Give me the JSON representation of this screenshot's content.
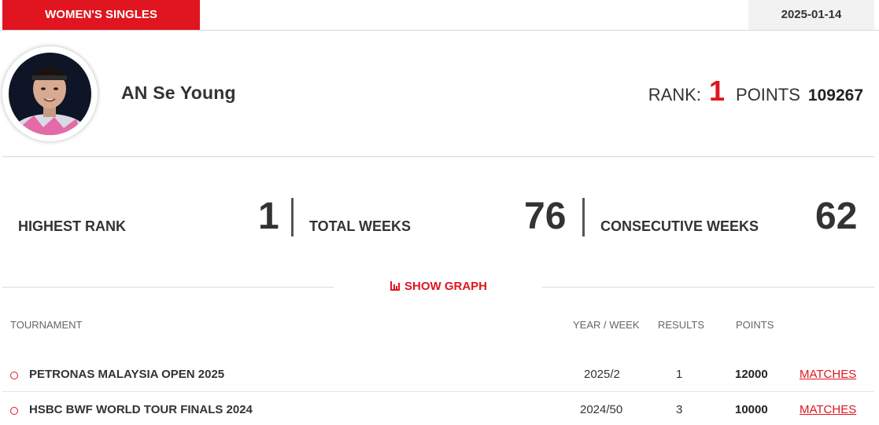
{
  "header": {
    "category": "WOMEN'S SINGLES",
    "date": "2025-01-14"
  },
  "player": {
    "name": "AN Se Young",
    "rank_label": "RANK:",
    "rank": "1",
    "points_label": "POINTS",
    "points": "109267"
  },
  "stats": [
    {
      "label": "HIGHEST RANK",
      "value": "1"
    },
    {
      "label": "TOTAL WEEKS",
      "value": "76"
    },
    {
      "label": "CONSECUTIVE WEEKS",
      "value": "62"
    }
  ],
  "show_graph_label": "SHOW GRAPH",
  "table": {
    "headers": [
      "TOURNAMENT",
      "YEAR / WEEK",
      "RESULTS",
      "POINTS"
    ],
    "rows": [
      {
        "tournament": "PETRONAS MALAYSIA OPEN 2025",
        "year_week": "2025/2",
        "results": "1",
        "points": "12000",
        "link": "MATCHES"
      },
      {
        "tournament": "HSBC BWF WORLD TOUR FINALS 2024",
        "year_week": "2024/50",
        "results": "3",
        "points": "10000",
        "link": "MATCHES"
      }
    ]
  },
  "colors": {
    "accent": "#e0151f",
    "text": "#333333",
    "divider": "#d9d9d9"
  }
}
